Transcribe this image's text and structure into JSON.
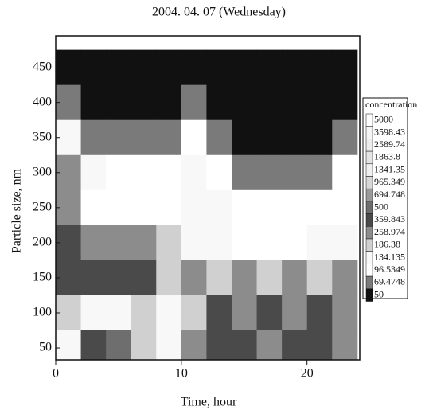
{
  "chart_data": {
    "type": "heatmap",
    "title": "2004. 04. 07 (Wednesday)",
    "x_label": "Time, hour",
    "y_label": "Particle size, nm",
    "x": [
      1,
      3,
      5,
      7,
      9,
      11,
      13,
      15,
      17,
      19,
      21,
      23
    ],
    "y": [
      450,
      400,
      350,
      300,
      250,
      200,
      150,
      100,
      50
    ],
    "z": [
      [
        60,
        55,
        55,
        50,
        50,
        60,
        55,
        50,
        50,
        50,
        50,
        50
      ],
      [
        80,
        60,
        60,
        55,
        55,
        70,
        60,
        50,
        50,
        50,
        55,
        60
      ],
      [
        150,
        90,
        80,
        70,
        80,
        100,
        80,
        60,
        55,
        55,
        60,
        70
      ],
      [
        260,
        140,
        120,
        110,
        120,
        140,
        120,
        90,
        70,
        70,
        80,
        100
      ],
      [
        300,
        130,
        110,
        120,
        130,
        160,
        140,
        120,
        100,
        100,
        110,
        130
      ],
      [
        400,
        350,
        300,
        260,
        200,
        150,
        140,
        130,
        120,
        130,
        140,
        160
      ],
      [
        380,
        400,
        420,
        380,
        250,
        300,
        200,
        300,
        200,
        300,
        200,
        350
      ],
      [
        200,
        180,
        160,
        200,
        150,
        250,
        400,
        300,
        450,
        350,
        400,
        300
      ],
      [
        150,
        400,
        500,
        200,
        140,
        300,
        400,
        450,
        300,
        400,
        450,
        300
      ]
    ],
    "xlim": [
      0,
      24.2
    ],
    "xticks": [
      0,
      10,
      20
    ],
    "ylim": [
      33,
      495
    ],
    "yticks": [
      50,
      100,
      150,
      200,
      250,
      300,
      350,
      400,
      450
    ],
    "legend_title": "concentration",
    "levels": [
      5000,
      3598.43,
      2589.74,
      1863.8,
      1341.35,
      965.349,
      694.748,
      500,
      359.843,
      258.974,
      186.38,
      134.135,
      96.5349,
      69.4748,
      50
    ],
    "level_colors": [
      "#ffffff",
      "#f4f4f4",
      "#ececec",
      "#e4e4e4",
      "#f0f0f0",
      "#d8d8d8",
      "#9a9a9a",
      "#6e6e6e",
      "#4a4a4a",
      "#8c8c8c",
      "#d0d0d0",
      "#f8f8f8",
      "#ffffff",
      "#7a7a7a",
      "#111111"
    ]
  }
}
